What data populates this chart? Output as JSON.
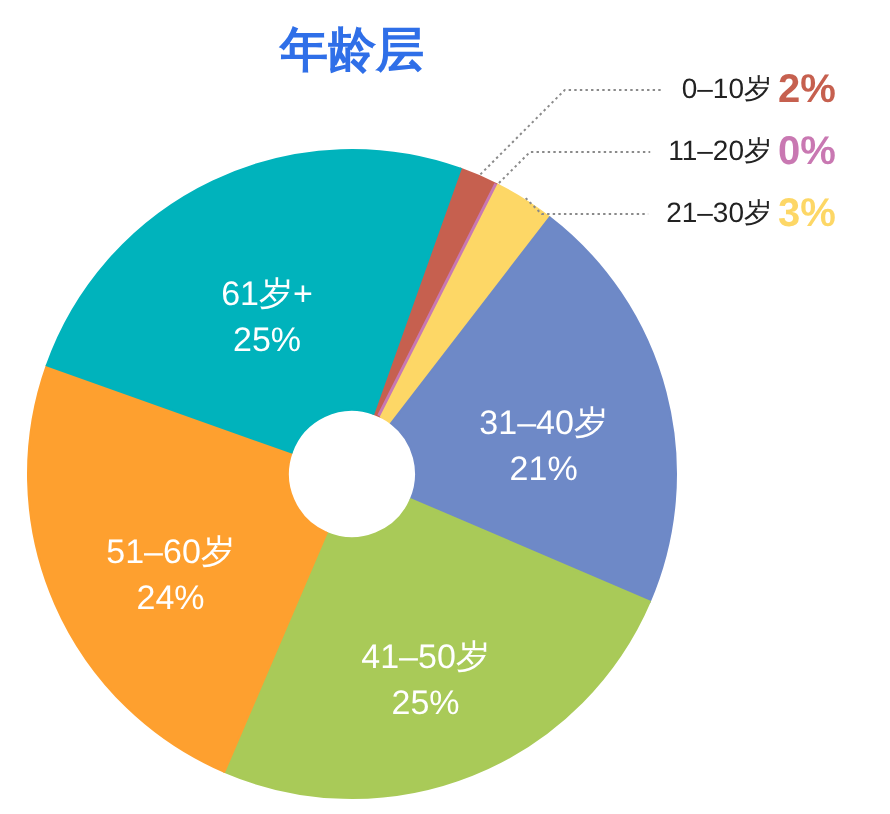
{
  "chart_data": {
    "type": "donut",
    "title": "年龄层",
    "categories": [
      "0–10岁",
      "11–20岁",
      "21–30岁",
      "31–40岁",
      "41–50岁",
      "51–60岁",
      "61岁+"
    ],
    "values": [
      2,
      0,
      3,
      21,
      25,
      24,
      25
    ],
    "colors": [
      "#c6604f",
      "#c978b2",
      "#fdd766",
      "#6e89c7",
      "#a9ca58",
      "#fea02f",
      "#00b3bc"
    ],
    "value_labels": [
      "2%",
      "0%",
      "3%",
      "21%",
      "25%",
      "24%",
      "25%"
    ]
  }
}
